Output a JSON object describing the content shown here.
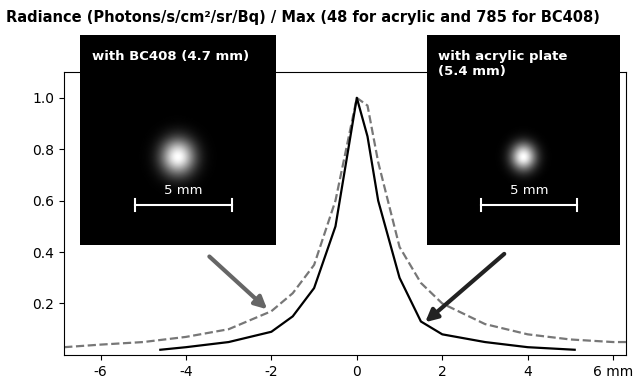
{
  "chart_data": {
    "type": "line",
    "title": "Radiance (Photons/s/cm²/sr/Bq) / Max (48 for acrylic and 785 for BC408)",
    "xlim": [
      -6.85,
      6.3
    ],
    "xticks": [
      -6,
      -4,
      -2,
      0,
      2,
      4,
      {
        "value": 6,
        "label": "6 mm"
      }
    ],
    "ylim": [
      0,
      1.1
    ],
    "yticks": [
      {
        "value": 0.2,
        "label": "0.2"
      },
      {
        "value": 0.4,
        "label": "0.4"
      },
      {
        "value": 0.6,
        "label": "0.6"
      },
      {
        "value": 0.8,
        "label": "0.8"
      },
      {
        "value": 1,
        "label": "1.0"
      }
    ],
    "grid": false,
    "series": [
      {
        "name": "with BC408 (4.7 mm)",
        "color": "#777777",
        "line_style": "dashed",
        "x": [
          -6.85,
          -6,
          -5,
          -4,
          -3,
          -2,
          -1.5,
          -1,
          -0.5,
          -0.25,
          0,
          0.25,
          0.5,
          1,
          1.5,
          2,
          3,
          4,
          5,
          6,
          6.3
        ],
        "values": [
          0.03,
          0.04,
          0.05,
          0.07,
          0.1,
          0.17,
          0.24,
          0.35,
          0.6,
          0.8,
          1.0,
          0.97,
          0.75,
          0.42,
          0.28,
          0.2,
          0.12,
          0.08,
          0.06,
          0.05,
          0.05
        ]
      },
      {
        "name": "with acrylic plate\n(5.4 mm)",
        "color": "#000000",
        "line_style": "solid",
        "x": [
          -4.6,
          -4,
          -3,
          -2,
          -1.5,
          -1,
          -0.5,
          -0.25,
          0,
          0.25,
          0.5,
          1,
          1.5,
          2,
          3,
          4,
          5.1
        ],
        "values": [
          0.02,
          0.03,
          0.05,
          0.09,
          0.15,
          0.26,
          0.5,
          0.75,
          1.0,
          0.85,
          0.6,
          0.3,
          0.13,
          0.08,
          0.05,
          0.03,
          0.02
        ]
      }
    ],
    "insets": [
      {
        "label": "with BC408 (4.7 mm)",
        "scale_bar": "5 mm"
      },
      {
        "label": "with acrylic plate\n(5.4 mm)",
        "scale_bar": "5 mm"
      }
    ]
  }
}
